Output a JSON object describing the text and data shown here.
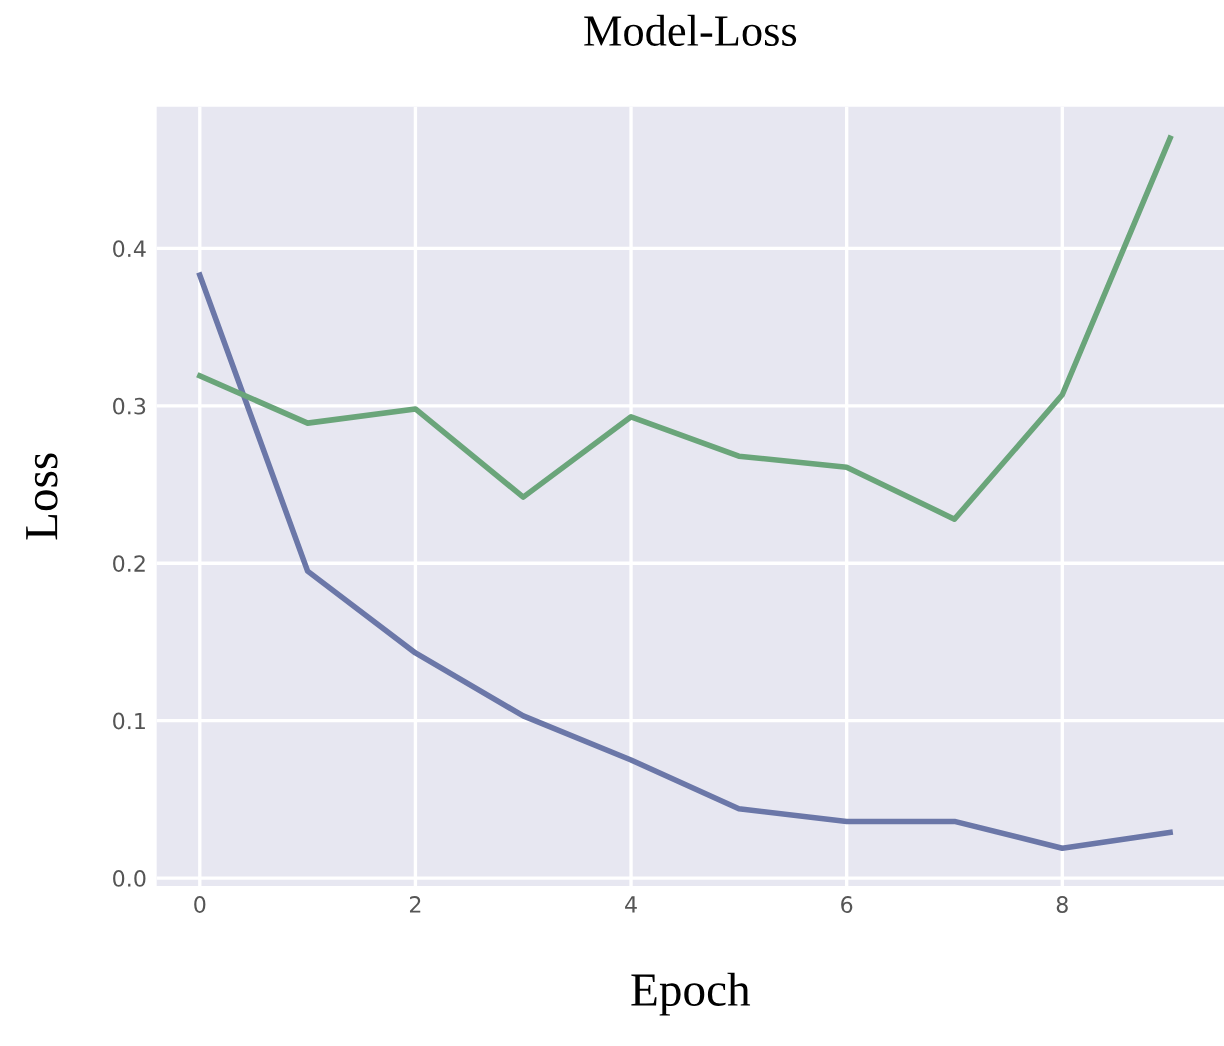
{
  "chart_data": {
    "type": "line",
    "title": "Model-Loss",
    "xlabel": "Epoch",
    "ylabel": "Loss",
    "x": [
      0,
      1,
      2,
      3,
      4,
      5,
      6,
      7,
      8,
      9
    ],
    "series": [
      {
        "color": "#6b77a8",
        "values": [
          0.383,
          0.195,
          0.143,
          0.103,
          0.075,
          0.044,
          0.036,
          0.036,
          0.019,
          0.029
        ]
      },
      {
        "color": "#6aa57a",
        "values": [
          0.319,
          0.289,
          0.298,
          0.242,
          0.293,
          0.268,
          0.261,
          0.228,
          0.307,
          0.47
        ]
      }
    ],
    "xlim": [
      -0.4,
      9.5
    ],
    "ylim": [
      -0.005,
      0.49
    ],
    "xticks": [
      0,
      2,
      4,
      6,
      8
    ],
    "yticks": [
      {
        "value": 0,
        "label": "0.0"
      },
      0.1,
      0.2,
      0.3,
      0.4
    ],
    "grid": true,
    "legend": false
  }
}
